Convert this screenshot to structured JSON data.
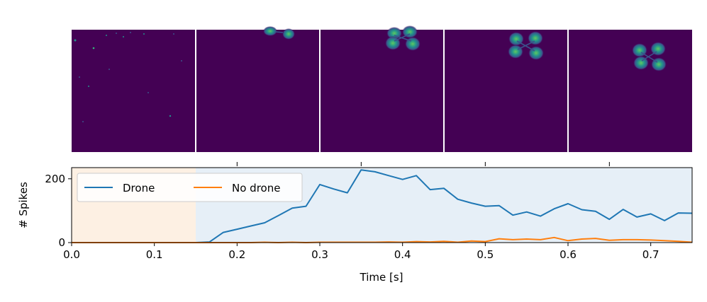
{
  "chart_data": {
    "type": "line",
    "xlabel": "Time [s]",
    "ylabel": "# Spikes",
    "xlim": [
      0.0,
      0.75
    ],
    "ylim": [
      0,
      235
    ],
    "x_ticks": [
      "0.0",
      "0.1",
      "0.2",
      "0.3",
      "0.4",
      "0.5",
      "0.6",
      "0.7"
    ],
    "y_ticks": [
      "0",
      "200"
    ],
    "legend_placement": "top-left",
    "shaded_regions": [
      {
        "label": "No drone",
        "x_range": [
          0.0,
          0.15
        ],
        "color": "#fdf0e3"
      },
      {
        "label": "Drone",
        "x_range": [
          0.15,
          0.75
        ],
        "color": "#e6eff7"
      }
    ],
    "series": [
      {
        "name": "Drone",
        "color": "#1f77b4",
        "x": [
          0.0,
          0.05,
          0.1,
          0.15,
          0.1667,
          0.1833,
          0.2,
          0.2167,
          0.2333,
          0.25,
          0.2667,
          0.2833,
          0.3,
          0.3167,
          0.3333,
          0.35,
          0.3667,
          0.3833,
          0.4,
          0.4167,
          0.4333,
          0.45,
          0.4667,
          0.4833,
          0.5,
          0.5167,
          0.5333,
          0.55,
          0.5667,
          0.5833,
          0.6,
          0.6167,
          0.6333,
          0.65,
          0.6667,
          0.6833,
          0.7,
          0.7167,
          0.7333,
          0.75
        ],
        "values": [
          0,
          0,
          0,
          0,
          2,
          32,
          42,
          52,
          62,
          85,
          108,
          114,
          182,
          168,
          156,
          228,
          222,
          210,
          198,
          210,
          166,
          170,
          136,
          124,
          114,
          116,
          86,
          96,
          83,
          106,
          122,
          103,
          98,
          73,
          104,
          80,
          90,
          69,
          93,
          92
        ]
      },
      {
        "name": "No drone",
        "color": "#ff7f0e",
        "x": [
          0.0,
          0.05,
          0.1,
          0.15,
          0.1667,
          0.1833,
          0.2,
          0.2167,
          0.2333,
          0.25,
          0.2667,
          0.2833,
          0.3,
          0.3167,
          0.3333,
          0.35,
          0.3667,
          0.3833,
          0.4,
          0.4167,
          0.4333,
          0.45,
          0.4667,
          0.4833,
          0.5,
          0.5167,
          0.5333,
          0.55,
          0.5667,
          0.5833,
          0.6,
          0.6167,
          0.6333,
          0.65,
          0.6667,
          0.6833,
          0.7,
          0.7167,
          0.7333,
          0.75
        ],
        "values": [
          0,
          0,
          0,
          0,
          0,
          0,
          0,
          0,
          1,
          0,
          1,
          0,
          1,
          1,
          1,
          1,
          1,
          2,
          1,
          3,
          2,
          4,
          1,
          5,
          3,
          12,
          9,
          11,
          9,
          16,
          6,
          11,
          13,
          7,
          9,
          9,
          8,
          6,
          4,
          1
        ]
      }
    ],
    "event_frames": {
      "count": 5,
      "colormap": "viridis",
      "background": "#440154",
      "separator_color": "#ffffff",
      "top_tick_times": [
        0.2,
        0.35,
        0.5,
        0.65
      ]
    }
  }
}
